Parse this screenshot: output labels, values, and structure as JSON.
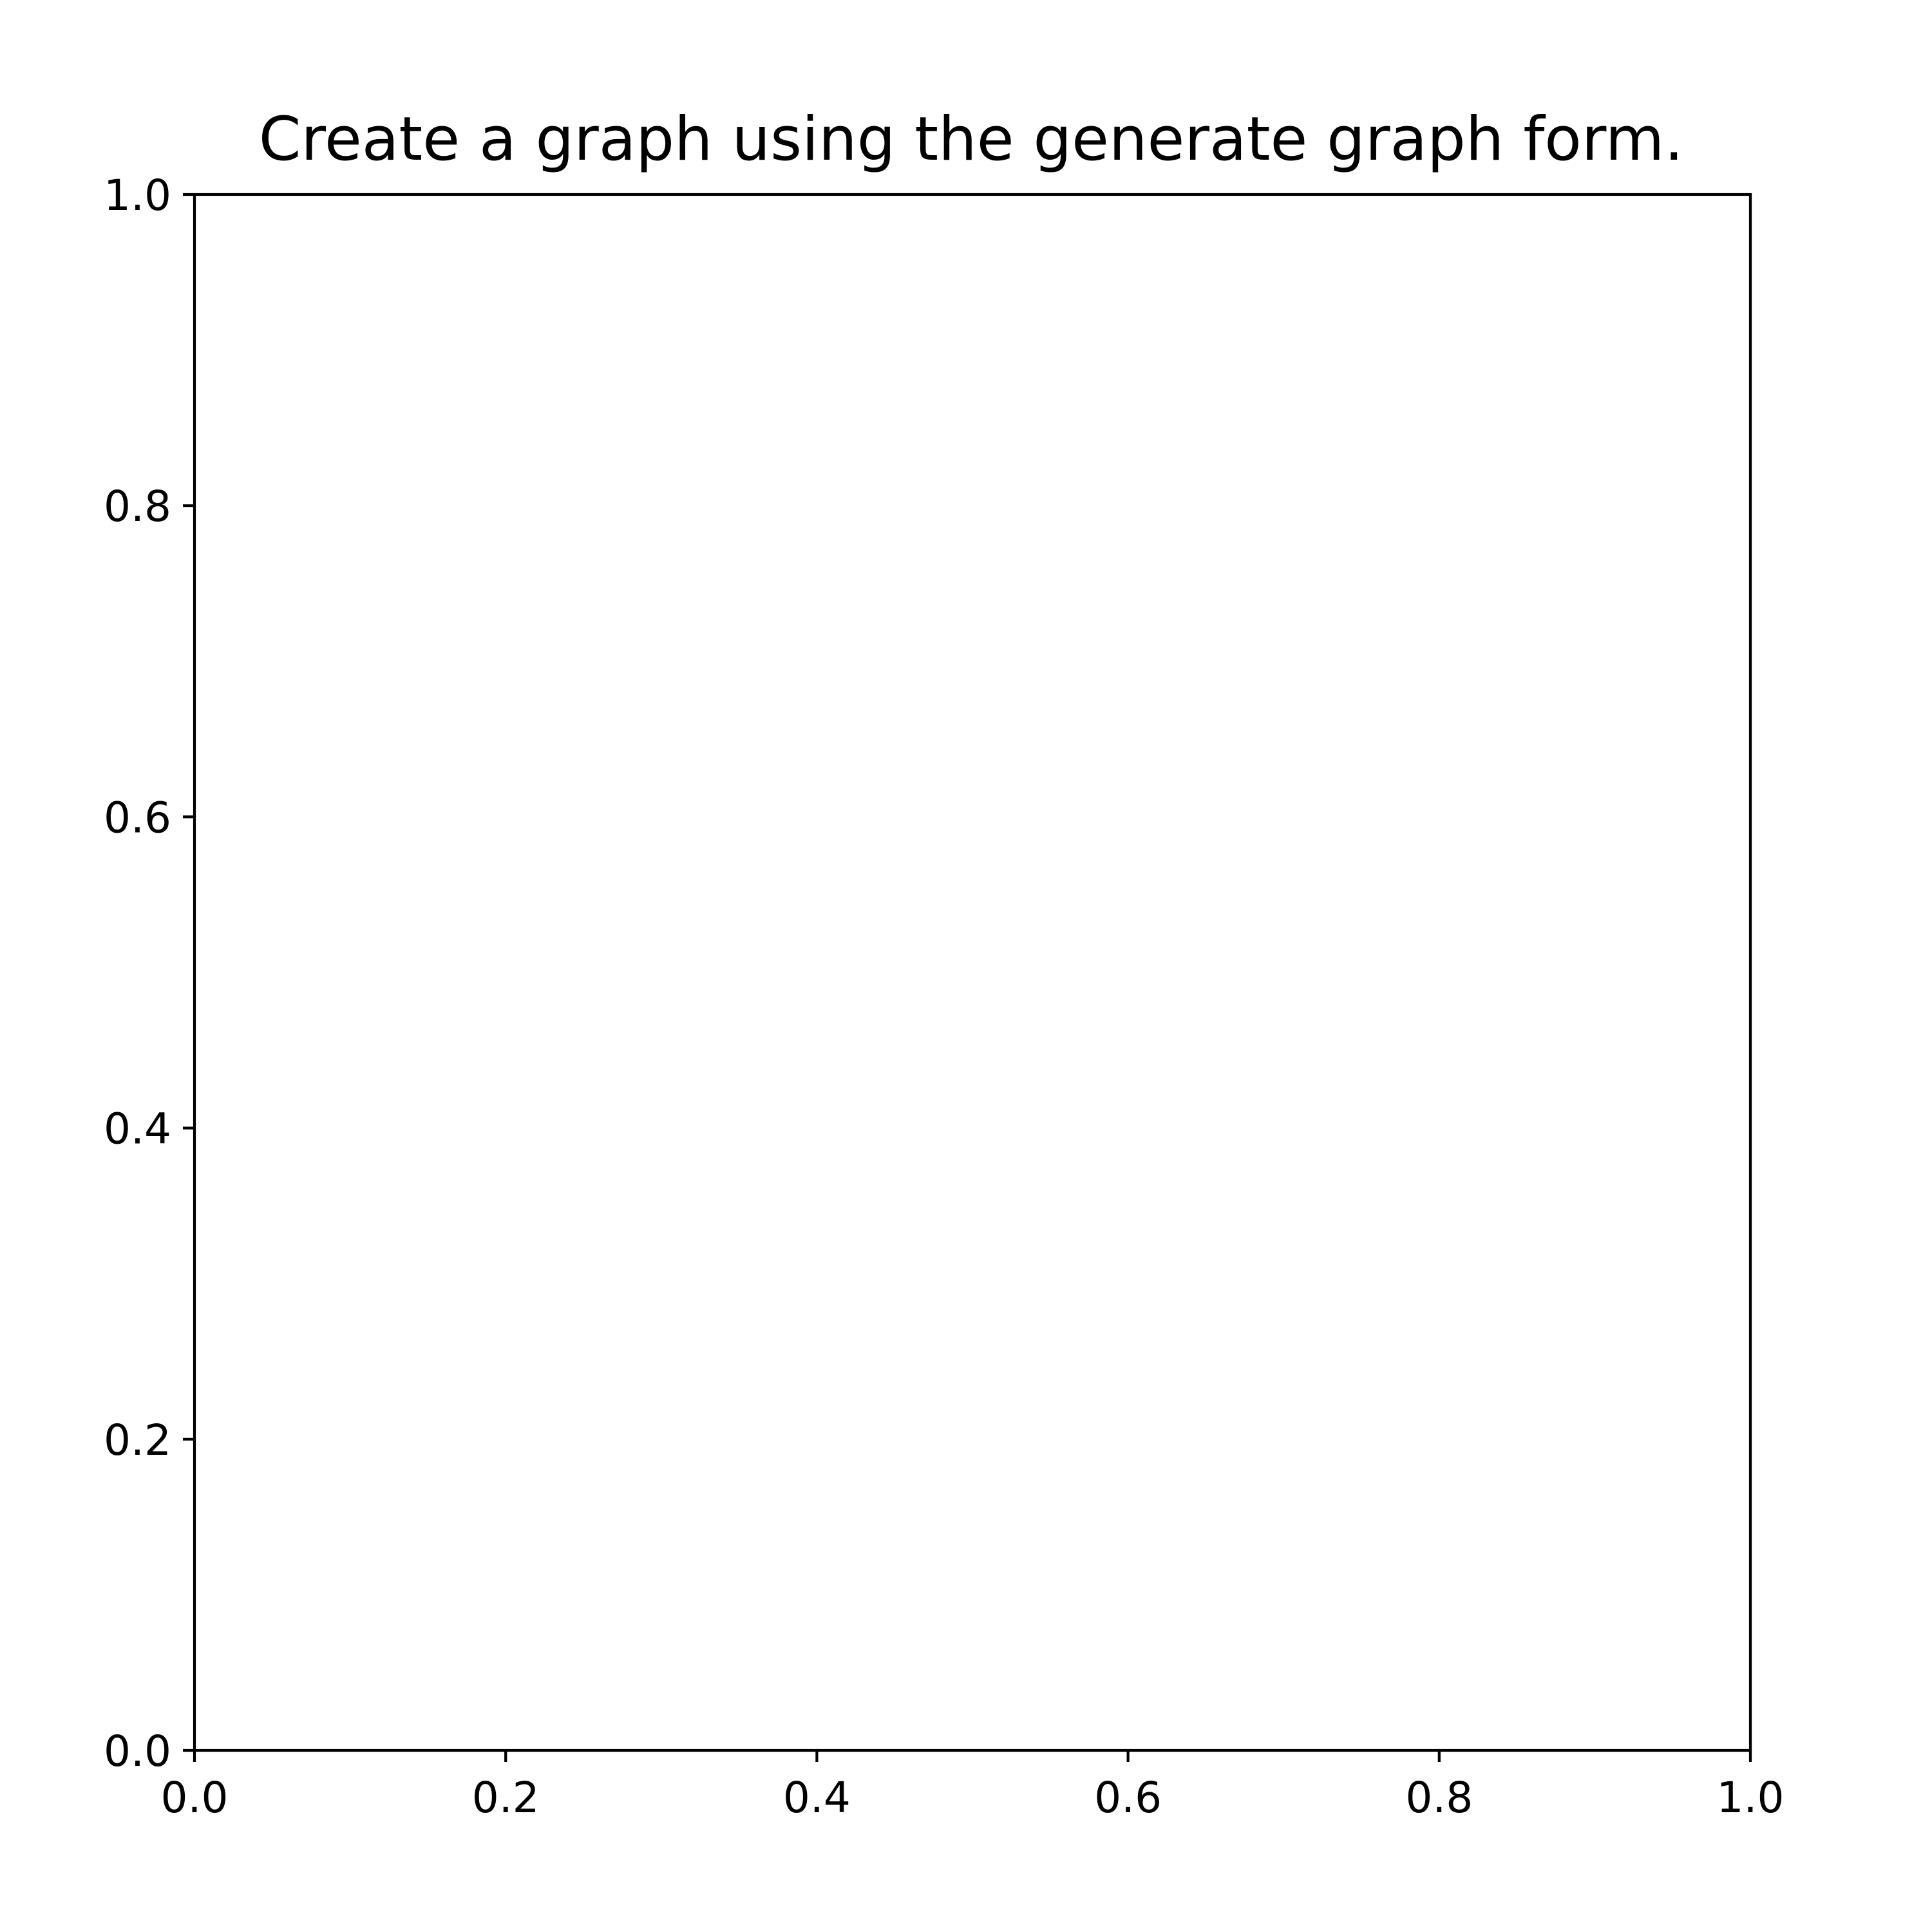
{
  "chart_data": {
    "type": "line",
    "title": "Create a graph using the generate graph form.",
    "xlabel": "",
    "ylabel": "",
    "xlim": [
      0.0,
      1.0
    ],
    "ylim": [
      0.0,
      1.0
    ],
    "x_ticks": [
      {
        "value": 0.0,
        "label": "0.0"
      },
      {
        "value": 0.2,
        "label": "0.2"
      },
      {
        "value": 0.4,
        "label": "0.4"
      },
      {
        "value": 0.6,
        "label": "0.6"
      },
      {
        "value": 0.8,
        "label": "0.8"
      },
      {
        "value": 1.0,
        "label": "1.0"
      }
    ],
    "y_ticks": [
      {
        "value": 0.0,
        "label": "0.0"
      },
      {
        "value": 0.2,
        "label": "0.2"
      },
      {
        "value": 0.4,
        "label": "0.4"
      },
      {
        "value": 0.6,
        "label": "0.6"
      },
      {
        "value": 0.8,
        "label": "0.8"
      },
      {
        "value": 1.0,
        "label": "1.0"
      }
    ],
    "series": [],
    "grid": false,
    "legend": "none",
    "colors": {
      "axes": "#000000",
      "background": "#ffffff"
    }
  }
}
